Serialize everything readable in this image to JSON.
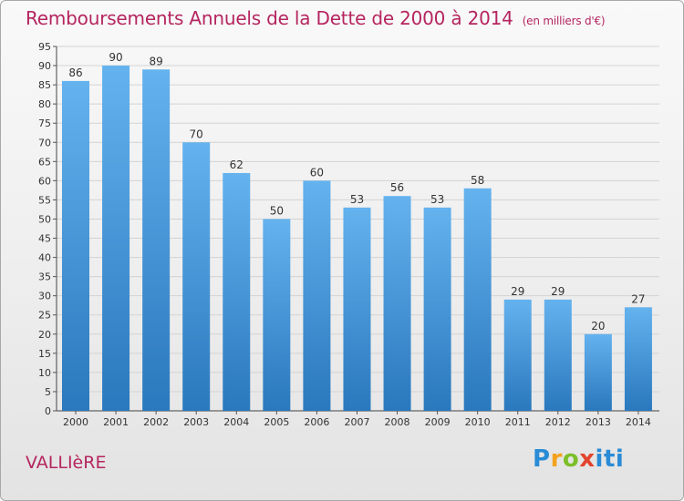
{
  "header": {
    "title": "Remboursements Annuels de la Dette de 2000 à 2014",
    "unit": "(en milliers d'€)"
  },
  "footer": {
    "place": "VALLIèRE",
    "brand": "Proxiti"
  },
  "colors": {
    "accent": "#b5255f",
    "bar_top": "#64b2ee",
    "bar_bottom": "#2a78bd",
    "grid": "#d3d3d3"
  },
  "chart_data": {
    "type": "bar",
    "title": "Remboursements Annuels de la Dette de 2000 à 2014",
    "xlabel": "",
    "ylabel": "",
    "categories": [
      "2000",
      "2001",
      "2002",
      "2003",
      "2004",
      "2005",
      "2006",
      "2007",
      "2008",
      "2009",
      "2010",
      "2011",
      "2012",
      "2013",
      "2014"
    ],
    "values": [
      86,
      90,
      89,
      70,
      62,
      50,
      60,
      53,
      56,
      53,
      58,
      29,
      29,
      20,
      27
    ],
    "ylim": [
      0,
      95
    ],
    "yticks": [
      0,
      5,
      10,
      15,
      20,
      25,
      30,
      35,
      40,
      45,
      50,
      55,
      60,
      65,
      70,
      75,
      80,
      85,
      90,
      95
    ],
    "grid": true,
    "legend": "none"
  }
}
